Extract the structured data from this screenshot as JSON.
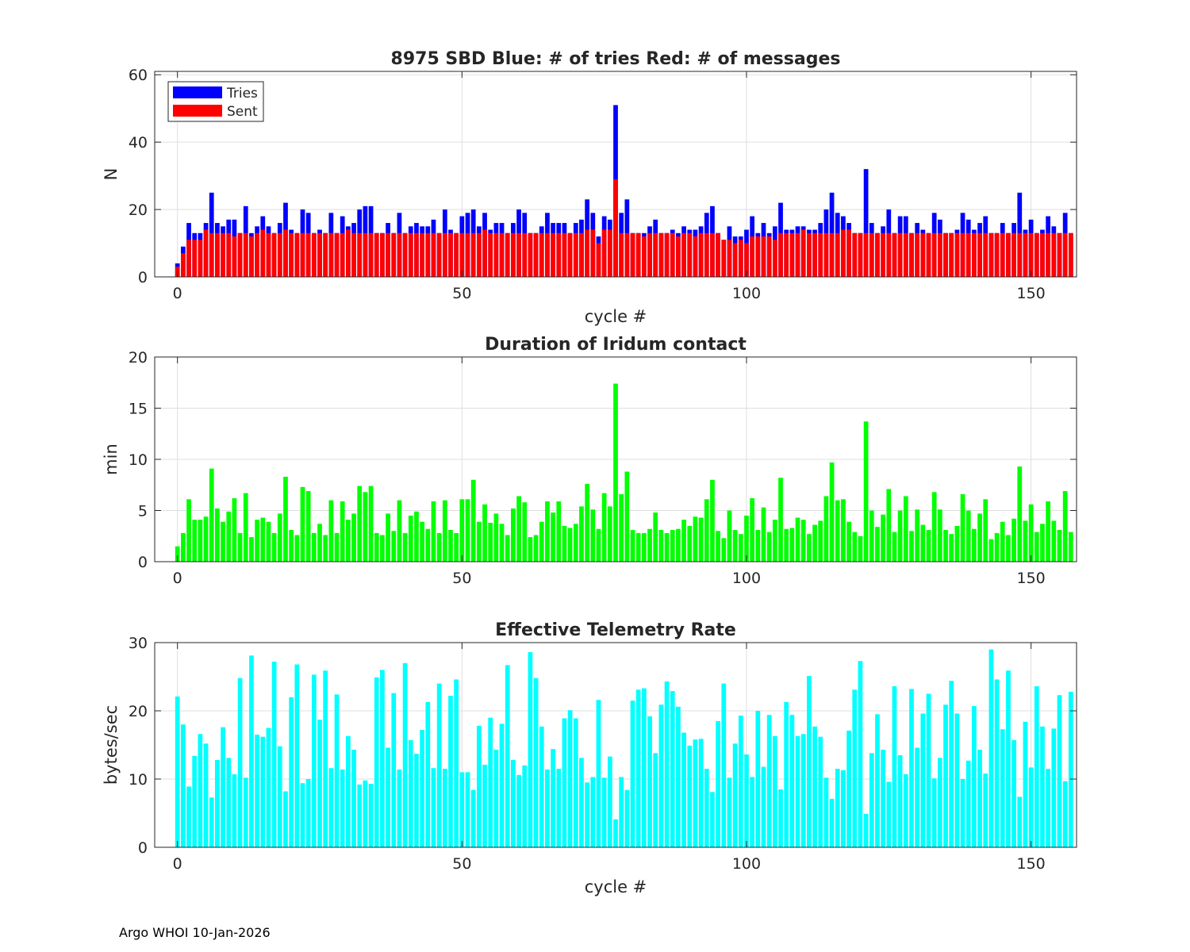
{
  "footer": "Argo WHOI 10-Jan-2026",
  "colors": {
    "tries": "#0000ff",
    "sent": "#ff0000",
    "duration": "#00ff00",
    "rate": "#00ffff",
    "grid": "#dfdfdf",
    "axis": "#262626"
  },
  "chart_data": [
    {
      "type": "bar",
      "title": "8975 SBD  Blue: # of tries   Red: # of messages",
      "xlabel": "cycle #",
      "ylabel": "N",
      "xlim": [
        -4,
        158
      ],
      "ylim": [
        0,
        61
      ],
      "xticks": [
        0,
        50,
        100,
        150
      ],
      "yticks": [
        0,
        20,
        40,
        60
      ],
      "grid": true,
      "legend": "top-left",
      "series": [
        {
          "name": "Tries",
          "values": [
            4,
            9,
            16,
            13,
            13,
            16,
            25,
            16,
            15,
            17,
            17,
            13,
            21,
            13,
            15,
            18,
            15,
            13,
            16,
            22,
            14,
            13,
            20,
            19,
            13,
            14,
            13,
            19,
            13,
            18,
            15,
            16,
            20,
            21,
            21,
            13,
            13,
            16,
            13,
            19,
            13,
            15,
            16,
            15,
            15,
            17,
            13,
            20,
            14,
            13,
            18,
            19,
            20,
            15,
            19,
            14,
            16,
            16,
            13,
            16,
            20,
            19,
            13,
            13,
            15,
            19,
            16,
            16,
            16,
            13,
            16,
            17,
            23,
            19,
            12,
            18,
            17,
            51,
            19,
            23,
            13,
            13,
            13,
            15,
            17,
            13,
            13,
            14,
            13,
            15,
            14,
            14,
            15,
            19,
            21,
            13,
            11,
            15,
            12,
            12,
            14,
            18,
            13,
            16,
            13,
            15,
            22,
            14,
            14,
            15,
            15,
            14,
            14,
            16,
            20,
            25,
            19,
            18,
            16,
            13,
            13,
            32,
            16,
            13,
            15,
            20,
            13,
            18,
            18,
            13,
            16,
            14,
            13,
            19,
            17,
            13,
            13,
            14,
            19,
            17,
            14,
            16,
            18,
            13,
            13,
            16,
            13,
            16,
            25,
            14,
            17,
            13,
            14,
            18,
            15,
            13,
            19,
            13
          ]
        },
        {
          "name": "Sent",
          "values": [
            3,
            7,
            11,
            11,
            11,
            14,
            13,
            13,
            13,
            13,
            12,
            13,
            13,
            12,
            13,
            14,
            13,
            13,
            13,
            14,
            13,
            13,
            13,
            13,
            13,
            13,
            13,
            13,
            13,
            13,
            14,
            13,
            13,
            13,
            13,
            13,
            13,
            13,
            13,
            13,
            13,
            13,
            13,
            13,
            13,
            13,
            13,
            13,
            13,
            13,
            13,
            13,
            13,
            13,
            14,
            13,
            13,
            13,
            13,
            13,
            13,
            13,
            13,
            13,
            13,
            13,
            13,
            13,
            13,
            13,
            13,
            13,
            14,
            14,
            10,
            14,
            14,
            29,
            13,
            13,
            13,
            13,
            12,
            13,
            13,
            13,
            13,
            13,
            12,
            13,
            13,
            12,
            13,
            13,
            13,
            13,
            11,
            11,
            10,
            11,
            10,
            12,
            12,
            12,
            12,
            11,
            13,
            13,
            13,
            13,
            14,
            13,
            13,
            13,
            13,
            13,
            13,
            14,
            14,
            13,
            13,
            13,
            13,
            13,
            13,
            13,
            13,
            13,
            13,
            13,
            13,
            13,
            13,
            13,
            13,
            13,
            13,
            13,
            13,
            13,
            13,
            13,
            13,
            13,
            13,
            13,
            13,
            13,
            13,
            13,
            13,
            13,
            13,
            13,
            13,
            13,
            13,
            13
          ]
        }
      ]
    },
    {
      "type": "bar",
      "title": "Duration of Iridum contact",
      "xlabel": "",
      "ylabel": "min",
      "xlim": [
        -4,
        158
      ],
      "ylim": [
        0,
        20
      ],
      "xticks": [
        0,
        50,
        100,
        150
      ],
      "yticks": [
        0,
        5,
        10,
        15,
        20
      ],
      "grid": true,
      "series": [
        {
          "values": [
            1.5,
            2.8,
            6.1,
            4.1,
            4.1,
            4.4,
            9.1,
            5.2,
            3.9,
            4.9,
            6.2,
            2.8,
            6.7,
            2.4,
            4.1,
            4.3,
            3.9,
            2.8,
            4.7,
            8.3,
            3.1,
            2.6,
            7.3,
            6.9,
            2.8,
            3.7,
            2.6,
            6.0,
            2.8,
            5.9,
            4.1,
            4.7,
            7.4,
            6.8,
            7.4,
            2.8,
            2.6,
            4.7,
            3.0,
            6.0,
            2.8,
            4.5,
            4.9,
            3.9,
            3.2,
            5.9,
            2.8,
            6.0,
            3.1,
            2.8,
            6.1,
            6.1,
            8.0,
            3.9,
            5.6,
            3.8,
            4.7,
            3.7,
            2.6,
            5.2,
            6.4,
            5.8,
            2.4,
            2.6,
            3.9,
            5.9,
            4.8,
            5.9,
            3.5,
            3.3,
            3.7,
            5.4,
            7.6,
            5.1,
            3.2,
            6.7,
            5.4,
            17.4,
            6.6,
            8.8,
            3.1,
            2.8,
            2.8,
            3.2,
            4.8,
            3.1,
            2.8,
            3.1,
            3.2,
            4.1,
            3.5,
            4.4,
            4.3,
            6.1,
            8.0,
            3.0,
            2.3,
            5.0,
            3.1,
            2.7,
            4.5,
            6.2,
            3.1,
            5.3,
            2.9,
            4.1,
            8.2,
            3.2,
            3.3,
            4.3,
            4.1,
            2.7,
            3.6,
            4.0,
            6.4,
            9.7,
            6.0,
            6.1,
            3.9,
            2.9,
            2.5,
            13.7,
            5.0,
            3.4,
            4.6,
            7.1,
            2.9,
            5.0,
            6.4,
            3.0,
            5.1,
            3.6,
            3.1,
            6.8,
            5.1,
            3.1,
            2.7,
            3.5,
            6.6,
            5.0,
            3.2,
            4.7,
            6.1,
            2.2,
            2.8,
            3.9,
            2.6,
            4.2,
            9.3,
            4.0,
            5.6,
            2.9,
            3.7,
            5.9,
            4.0,
            3.1,
            6.9,
            2.9
          ]
        }
      ]
    },
    {
      "type": "bar",
      "title": "Effective Telemetry Rate",
      "xlabel": "cycle #",
      "ylabel": "bytes/sec",
      "xlim": [
        -4,
        158
      ],
      "ylim": [
        0,
        30
      ],
      "xticks": [
        0,
        50,
        100,
        150
      ],
      "yticks": [
        0,
        10,
        20,
        30
      ],
      "grid": true,
      "series": [
        {
          "values": [
            22.1,
            18.0,
            8.9,
            13.4,
            16.6,
            15.2,
            7.3,
            12.8,
            17.6,
            13.1,
            10.7,
            24.8,
            10.2,
            28.1,
            16.5,
            16.2,
            17.5,
            27.2,
            14.8,
            8.2,
            22.0,
            26.8,
            9.4,
            10.0,
            25.3,
            18.7,
            25.9,
            11.6,
            22.4,
            11.4,
            16.3,
            14.3,
            9.2,
            9.8,
            9.3,
            24.9,
            26.0,
            14.6,
            22.6,
            11.4,
            27.0,
            15.7,
            13.7,
            17.2,
            21.3,
            11.6,
            24.0,
            11.5,
            22.2,
            24.6,
            11.0,
            11.0,
            8.4,
            17.8,
            12.1,
            19.0,
            14.3,
            18.1,
            26.7,
            12.8,
            10.6,
            12.0,
            28.6,
            24.8,
            17.7,
            11.4,
            14.4,
            11.5,
            18.9,
            20.1,
            18.9,
            13.1,
            9.5,
            10.3,
            21.6,
            10.2,
            13.3,
            4.1,
            10.3,
            8.4,
            21.5,
            23.1,
            23.3,
            19.2,
            13.8,
            20.9,
            24.3,
            22.9,
            20.6,
            16.8,
            14.9,
            15.8,
            15.9,
            11.5,
            8.1,
            18.5,
            24.0,
            10.2,
            15.2,
            19.3,
            13.6,
            10.3,
            20.0,
            11.8,
            19.4,
            16.3,
            8.5,
            21.3,
            19.4,
            16.3,
            16.6,
            25.1,
            17.7,
            16.2,
            10.2,
            7.1,
            11.5,
            11.3,
            17.1,
            23.1,
            27.3,
            4.9,
            13.8,
            19.5,
            14.3,
            9.6,
            23.6,
            13.5,
            10.7,
            23.2,
            14.6,
            19.6,
            22.5,
            10.1,
            13.1,
            20.9,
            24.4,
            19.6,
            10.0,
            12.7,
            20.7,
            14.3,
            10.8,
            29.0,
            24.6,
            17.3,
            25.9,
            15.7,
            7.4,
            18.4,
            11.7,
            23.6,
            17.7,
            11.5,
            17.4,
            22.3,
            9.7,
            22.8
          ]
        }
      ]
    }
  ]
}
